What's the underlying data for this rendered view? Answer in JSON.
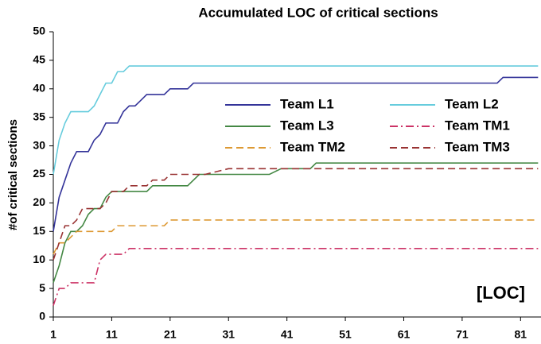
{
  "chart_data": {
    "type": "line",
    "title": "Accumulated LOC of critical sections",
    "y_label": "#of critical sections",
    "annotation": "[LOC]",
    "xlim": [
      1,
      84.5
    ],
    "xticks": [
      1,
      11,
      21,
      31,
      41,
      51,
      61,
      71,
      81
    ],
    "ylim": [
      0,
      50
    ],
    "yticks": [
      0,
      5,
      10,
      15,
      20,
      25,
      30,
      35,
      40,
      45,
      50
    ],
    "grid": false,
    "series": [
      {
        "name": "Team L1",
        "color": "#333399",
        "dash": "solid",
        "x": [
          1,
          2,
          3,
          4,
          5,
          7,
          8,
          9,
          10,
          12,
          13,
          14,
          15,
          16,
          17,
          20,
          21,
          24,
          25,
          77,
          78,
          84
        ],
        "values": [
          15,
          21,
          24,
          27,
          29,
          29,
          31,
          32,
          34,
          34,
          36,
          37,
          37,
          38,
          39,
          39,
          40,
          40,
          41,
          41,
          42,
          42
        ]
      },
      {
        "name": "Team L2",
        "color": "#66ccdd",
        "dash": "solid",
        "x": [
          1,
          2,
          3,
          4,
          7,
          8,
          9,
          10,
          11,
          12,
          13,
          14,
          84
        ],
        "values": [
          25,
          31,
          34,
          36,
          36,
          37,
          39,
          41,
          41,
          43,
          43,
          44,
          44
        ]
      },
      {
        "name": "Team L3",
        "color": "#448844",
        "dash": "solid",
        "x": [
          1,
          2,
          3,
          4,
          5,
          6,
          7,
          8,
          9,
          10,
          11,
          17,
          18,
          24,
          26,
          38,
          40,
          45,
          46,
          84
        ],
        "values": [
          6,
          9,
          13,
          15,
          15,
          16,
          18,
          19,
          19,
          21,
          22,
          22,
          23,
          23,
          25,
          25,
          26,
          26,
          27,
          27
        ]
      },
      {
        "name": "Team TM1",
        "color": "#cc3366",
        "dash": "dashdot",
        "x": [
          1,
          2,
          3,
          4,
          8,
          9,
          10,
          13,
          14,
          84
        ],
        "values": [
          2,
          5,
          5,
          6,
          6,
          10,
          11,
          11,
          12,
          12
        ]
      },
      {
        "name": "Team TM2",
        "color": "#dd9933",
        "dash": "dashed",
        "x": [
          1,
          2,
          3,
          4,
          5,
          11,
          12,
          20,
          21,
          84
        ],
        "values": [
          11,
          13,
          13,
          14,
          15,
          15,
          16,
          16,
          17,
          17
        ]
      },
      {
        "name": "Team TM3",
        "color": "#993333",
        "dash": "dashed",
        "x": [
          1,
          2,
          3,
          4,
          5,
          6,
          9,
          10,
          11,
          13,
          14,
          17,
          18,
          20,
          21,
          27,
          31,
          84
        ],
        "values": [
          10,
          13,
          16,
          16,
          17,
          19,
          19,
          20,
          22,
          22,
          23,
          23,
          24,
          24,
          25,
          25,
          26,
          26
        ]
      }
    ]
  }
}
